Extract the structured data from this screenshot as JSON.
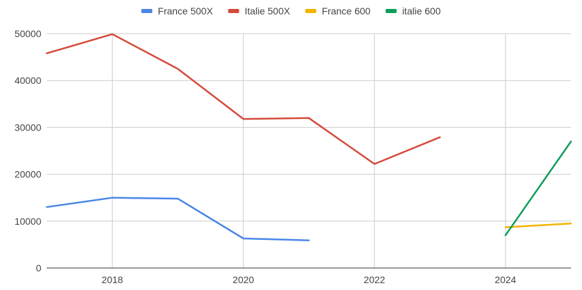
{
  "chart_data": {
    "type": "line",
    "title": "",
    "xlabel": "",
    "ylabel": "",
    "xlim": [
      2017,
      2025
    ],
    "ylim": [
      0,
      50000
    ],
    "x_ticks": [
      {
        "value": 2018,
        "label": "2018"
      },
      {
        "value": 2020,
        "label": "2020"
      },
      {
        "value": 2022,
        "label": "2022"
      },
      {
        "value": 2024,
        "label": "2024"
      }
    ],
    "y_ticks": [
      {
        "value": 0,
        "label": "0"
      },
      {
        "value": 10000,
        "label": "10000"
      },
      {
        "value": 20000,
        "label": "20000"
      },
      {
        "value": 30000,
        "label": "30000"
      },
      {
        "value": 40000,
        "label": "40000"
      },
      {
        "value": 50000,
        "label": "50000"
      }
    ],
    "grid": true,
    "legend_position": "top",
    "series": [
      {
        "name": "France 500X",
        "color": "#4a86e8",
        "points": [
          {
            "x": 2017,
            "y": 13000
          },
          {
            "x": 2018,
            "y": 15000
          },
          {
            "x": 2019,
            "y": 14800
          },
          {
            "x": 2020,
            "y": 6300
          },
          {
            "x": 2021,
            "y": 5900
          }
        ]
      },
      {
        "name": "Italie 500X",
        "color": "#d44a3a",
        "points": [
          {
            "x": 2017,
            "y": 45800
          },
          {
            "x": 2018,
            "y": 49900
          },
          {
            "x": 2019,
            "y": 42500
          },
          {
            "x": 2020,
            "y": 31800
          },
          {
            "x": 2021,
            "y": 32000
          },
          {
            "x": 2022,
            "y": 22200
          },
          {
            "x": 2023,
            "y": 27900
          }
        ]
      },
      {
        "name": "France 600",
        "color": "#f4b400",
        "points": [
          {
            "x": 2024,
            "y": 8700
          },
          {
            "x": 2025,
            "y": 9500
          }
        ]
      },
      {
        "name": "italie 600",
        "color": "#0f9d58",
        "points": [
          {
            "x": 2024,
            "y": 7000
          },
          {
            "x": 2025,
            "y": 27000
          }
        ]
      }
    ]
  }
}
